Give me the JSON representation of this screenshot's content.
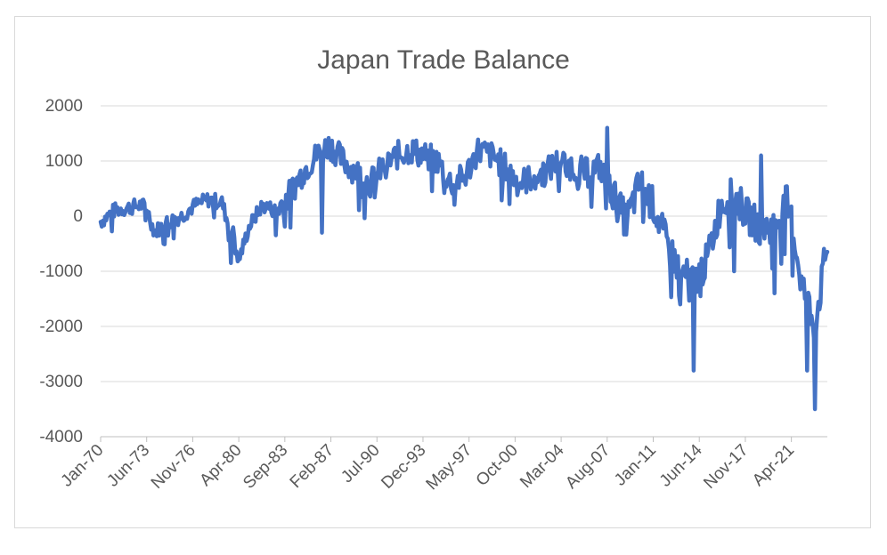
{
  "chart_data": {
    "type": "line",
    "title": "Japan Trade Balance",
    "xlabel": "",
    "ylabel": "",
    "ylim": [
      -4000,
      2000
    ],
    "yticks": [
      2000,
      1000,
      0,
      -1000,
      -2000,
      -3000,
      -4000
    ],
    "xticks": [
      "Jan-70",
      "Jun-73",
      "Nov-76",
      "Apr-80",
      "Sep-83",
      "Feb-87",
      "Jul-90",
      "Dec-93",
      "May-97",
      "Oct-00",
      "Mar-04",
      "Aug-07",
      "Jan-11",
      "Jun-14",
      "Nov-17",
      "Apr-21"
    ],
    "grid": true,
    "legend": "none",
    "line_color": "#4472c4",
    "x_start": "Jan-70",
    "x_end": "Dec-23",
    "series": [
      {
        "name": "",
        "x": [
          "Jan-70",
          "Jan-71",
          "Jan-72",
          "Jan-73",
          "Jun-73",
          "Jan-74",
          "Jun-74",
          "Jan-75",
          "Jan-76",
          "Jan-77",
          "Jan-78",
          "Jan-79",
          "Jun-79",
          "Jan-80",
          "Apr-80",
          "Jan-81",
          "Jan-82",
          "Jan-83",
          "Jan-84",
          "Jan-85",
          "Jan-86",
          "Jan-87",
          "Jan-88",
          "Jan-89",
          "Jan-90",
          "Jan-91",
          "Jan-92",
          "Jan-93",
          "Jan-94",
          "Jan-95",
          "Jan-96",
          "Jan-97",
          "Jan-98",
          "Jan-99",
          "Jan-00",
          "Jan-01",
          "Jan-02",
          "Jan-03",
          "Jan-04",
          "Jan-05",
          "Jan-06",
          "Jan-07",
          "Jan-08",
          "Jan-09",
          "Jan-10",
          "Jan-11",
          "Jan-12",
          "Jan-13",
          "Jan-14",
          "Jan-15",
          "Jan-16",
          "Jan-17",
          "Jan-18",
          "Jan-19",
          "Jan-20",
          "Jan-21",
          "Jan-22",
          "Jan-23",
          "Dec-23"
        ],
        "y": [
          -100,
          100,
          150,
          200,
          150,
          -300,
          -200,
          -100,
          0,
          200,
          300,
          250,
          -100,
          -400,
          -800,
          -200,
          200,
          100,
          400,
          800,
          1100,
          1300,
          1000,
          800,
          600,
          900,
          1100,
          1200,
          1100,
          1000,
          600,
          700,
          1200,
          1100,
          900,
          600,
          700,
          800,
          1000,
          900,
          800,
          900,
          400,
          -100,
          600,
          200,
          -500,
          -1000,
          -1200,
          -800,
          200,
          400,
          0,
          -200,
          -200,
          300,
          -1200,
          -2000,
          -500
        ]
      }
    ],
    "spikes": [
      {
        "x": "Sep-79",
        "y": -850
      },
      {
        "x": "Jun-86",
        "y": -300
      },
      {
        "x": "Aug-07",
        "y": 1600
      },
      {
        "x": "Jan-13",
        "y": -1600
      },
      {
        "x": "Jan-14",
        "y": -2800
      },
      {
        "x": "Jan-17",
        "y": -1000
      },
      {
        "x": "Jan-19",
        "y": 1100
      },
      {
        "x": "Jan-20",
        "y": -1400
      },
      {
        "x": "Jun-22",
        "y": -2800
      },
      {
        "x": "Jan-23",
        "y": -3500
      }
    ]
  }
}
